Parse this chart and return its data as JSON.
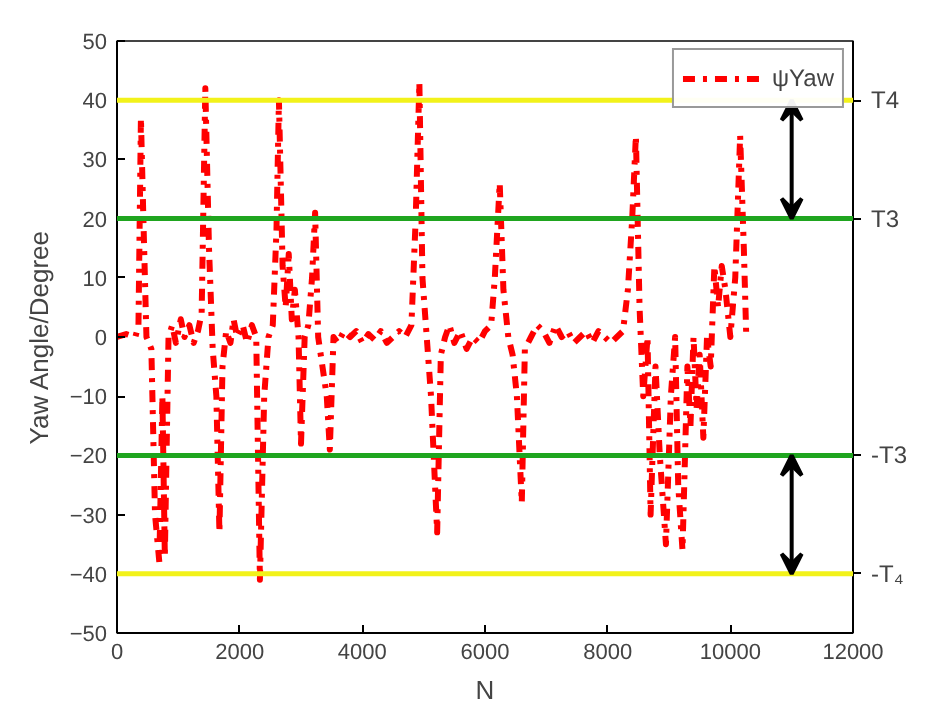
{
  "chart_data": {
    "type": "line",
    "xlabel": "N",
    "ylabel": "Yaw Angle/Degree",
    "x": [
      0,
      150,
      300,
      350,
      390,
      430,
      480,
      560,
      620,
      690,
      740,
      780,
      840,
      900,
      960,
      1040,
      1100,
      1180,
      1250,
      1320,
      1380,
      1440,
      1500,
      1560,
      1620,
      1670,
      1720,
      1780,
      1850,
      1900,
      1960,
      2050,
      2120,
      2200,
      2270,
      2330,
      2400,
      2470,
      2540,
      2600,
      2640,
      2700,
      2750,
      2800,
      2850,
      2900,
      2960,
      3000,
      3060,
      3120,
      3180,
      3230,
      3280,
      3350,
      3420,
      3470,
      3530,
      3600,
      3700,
      3800,
      3900,
      4000,
      4100,
      4200,
      4300,
      4400,
      4500,
      4600,
      4700,
      4800,
      4870,
      4930,
      4980,
      5050,
      5120,
      5220,
      5280,
      5350,
      5420,
      5500,
      5600,
      5700,
      5800,
      5900,
      6000,
      6100,
      6160,
      6240,
      6300,
      6380,
      6450,
      6520,
      6600,
      6650,
      6750,
      6850,
      6950,
      7050,
      7150,
      7250,
      7350,
      7450,
      7550,
      7650,
      7750,
      7850,
      7950,
      8050,
      8150,
      8250,
      8330,
      8400,
      8460,
      8520,
      8580,
      8650,
      8700,
      8780,
      8850,
      8950,
      9030,
      9100,
      9150,
      9220,
      9300,
      9350,
      9400,
      9450,
      9500,
      9560,
      9620,
      9680,
      9740,
      9800,
      9860,
      9920,
      10000,
      10080,
      10160,
      10220,
      10260
    ],
    "series": [
      {
        "name": "ψYaw",
        "color": "#ff0000",
        "values": [
          0,
          0.5,
          0,
          2,
          37,
          20,
          0,
          -2,
          -30,
          -38,
          -10,
          -37,
          0,
          2,
          -1,
          3,
          0,
          2,
          -1,
          1,
          4,
          42,
          15,
          -2,
          -10,
          -33,
          -5,
          1,
          -1,
          3,
          0,
          2,
          -1,
          2,
          0,
          -41,
          -10,
          0,
          2,
          18,
          40,
          12,
          5,
          14,
          3,
          8,
          0,
          -18,
          0,
          2,
          10,
          21,
          0,
          -5,
          -10,
          -19,
          0,
          -1,
          1,
          0,
          1,
          -1,
          0.5,
          -0.5,
          1,
          -1,
          0,
          1,
          0,
          2,
          20,
          43,
          10,
          0,
          -10,
          -33,
          -3,
          0,
          2,
          -1,
          1,
          -2,
          0,
          -1,
          1,
          2,
          10,
          26,
          8,
          0,
          -3,
          -10,
          -28,
          -2,
          0,
          2,
          1,
          -1,
          2,
          0,
          1,
          -1,
          0,
          1,
          -1,
          1,
          0,
          -1,
          0,
          1,
          8,
          20,
          34,
          5,
          -10,
          0,
          -30,
          -5,
          -20,
          -35,
          -10,
          0,
          -25,
          -36,
          -5,
          -15,
          0,
          -12,
          -3,
          -17,
          0,
          -5,
          12,
          5,
          12,
          8,
          0,
          10,
          34,
          15,
          0
        ]
      }
    ],
    "xlim": [
      0,
      12000
    ],
    "xticks": [
      0,
      2000,
      4000,
      6000,
      8000,
      10000,
      12000
    ],
    "ylim": [
      -50,
      50
    ],
    "yticks": [
      -50,
      -40,
      -30,
      -20,
      -10,
      0,
      10,
      20,
      30,
      40,
      50
    ],
    "ref_lines": [
      {
        "axis": "y",
        "value": 40,
        "label": "T4",
        "color": "#f2f21a"
      },
      {
        "axis": "y",
        "value": 20,
        "label": "T3",
        "color": "#1fa51f"
      },
      {
        "axis": "y",
        "value": -20,
        "label": "-T3",
        "color": "#1fa51f"
      },
      {
        "axis": "y",
        "value": -40,
        "label": "-T₄",
        "color": "#f2f21a"
      }
    ],
    "grid": false,
    "legend": "top right",
    "line_style": "dashdot",
    "marker": "none"
  }
}
